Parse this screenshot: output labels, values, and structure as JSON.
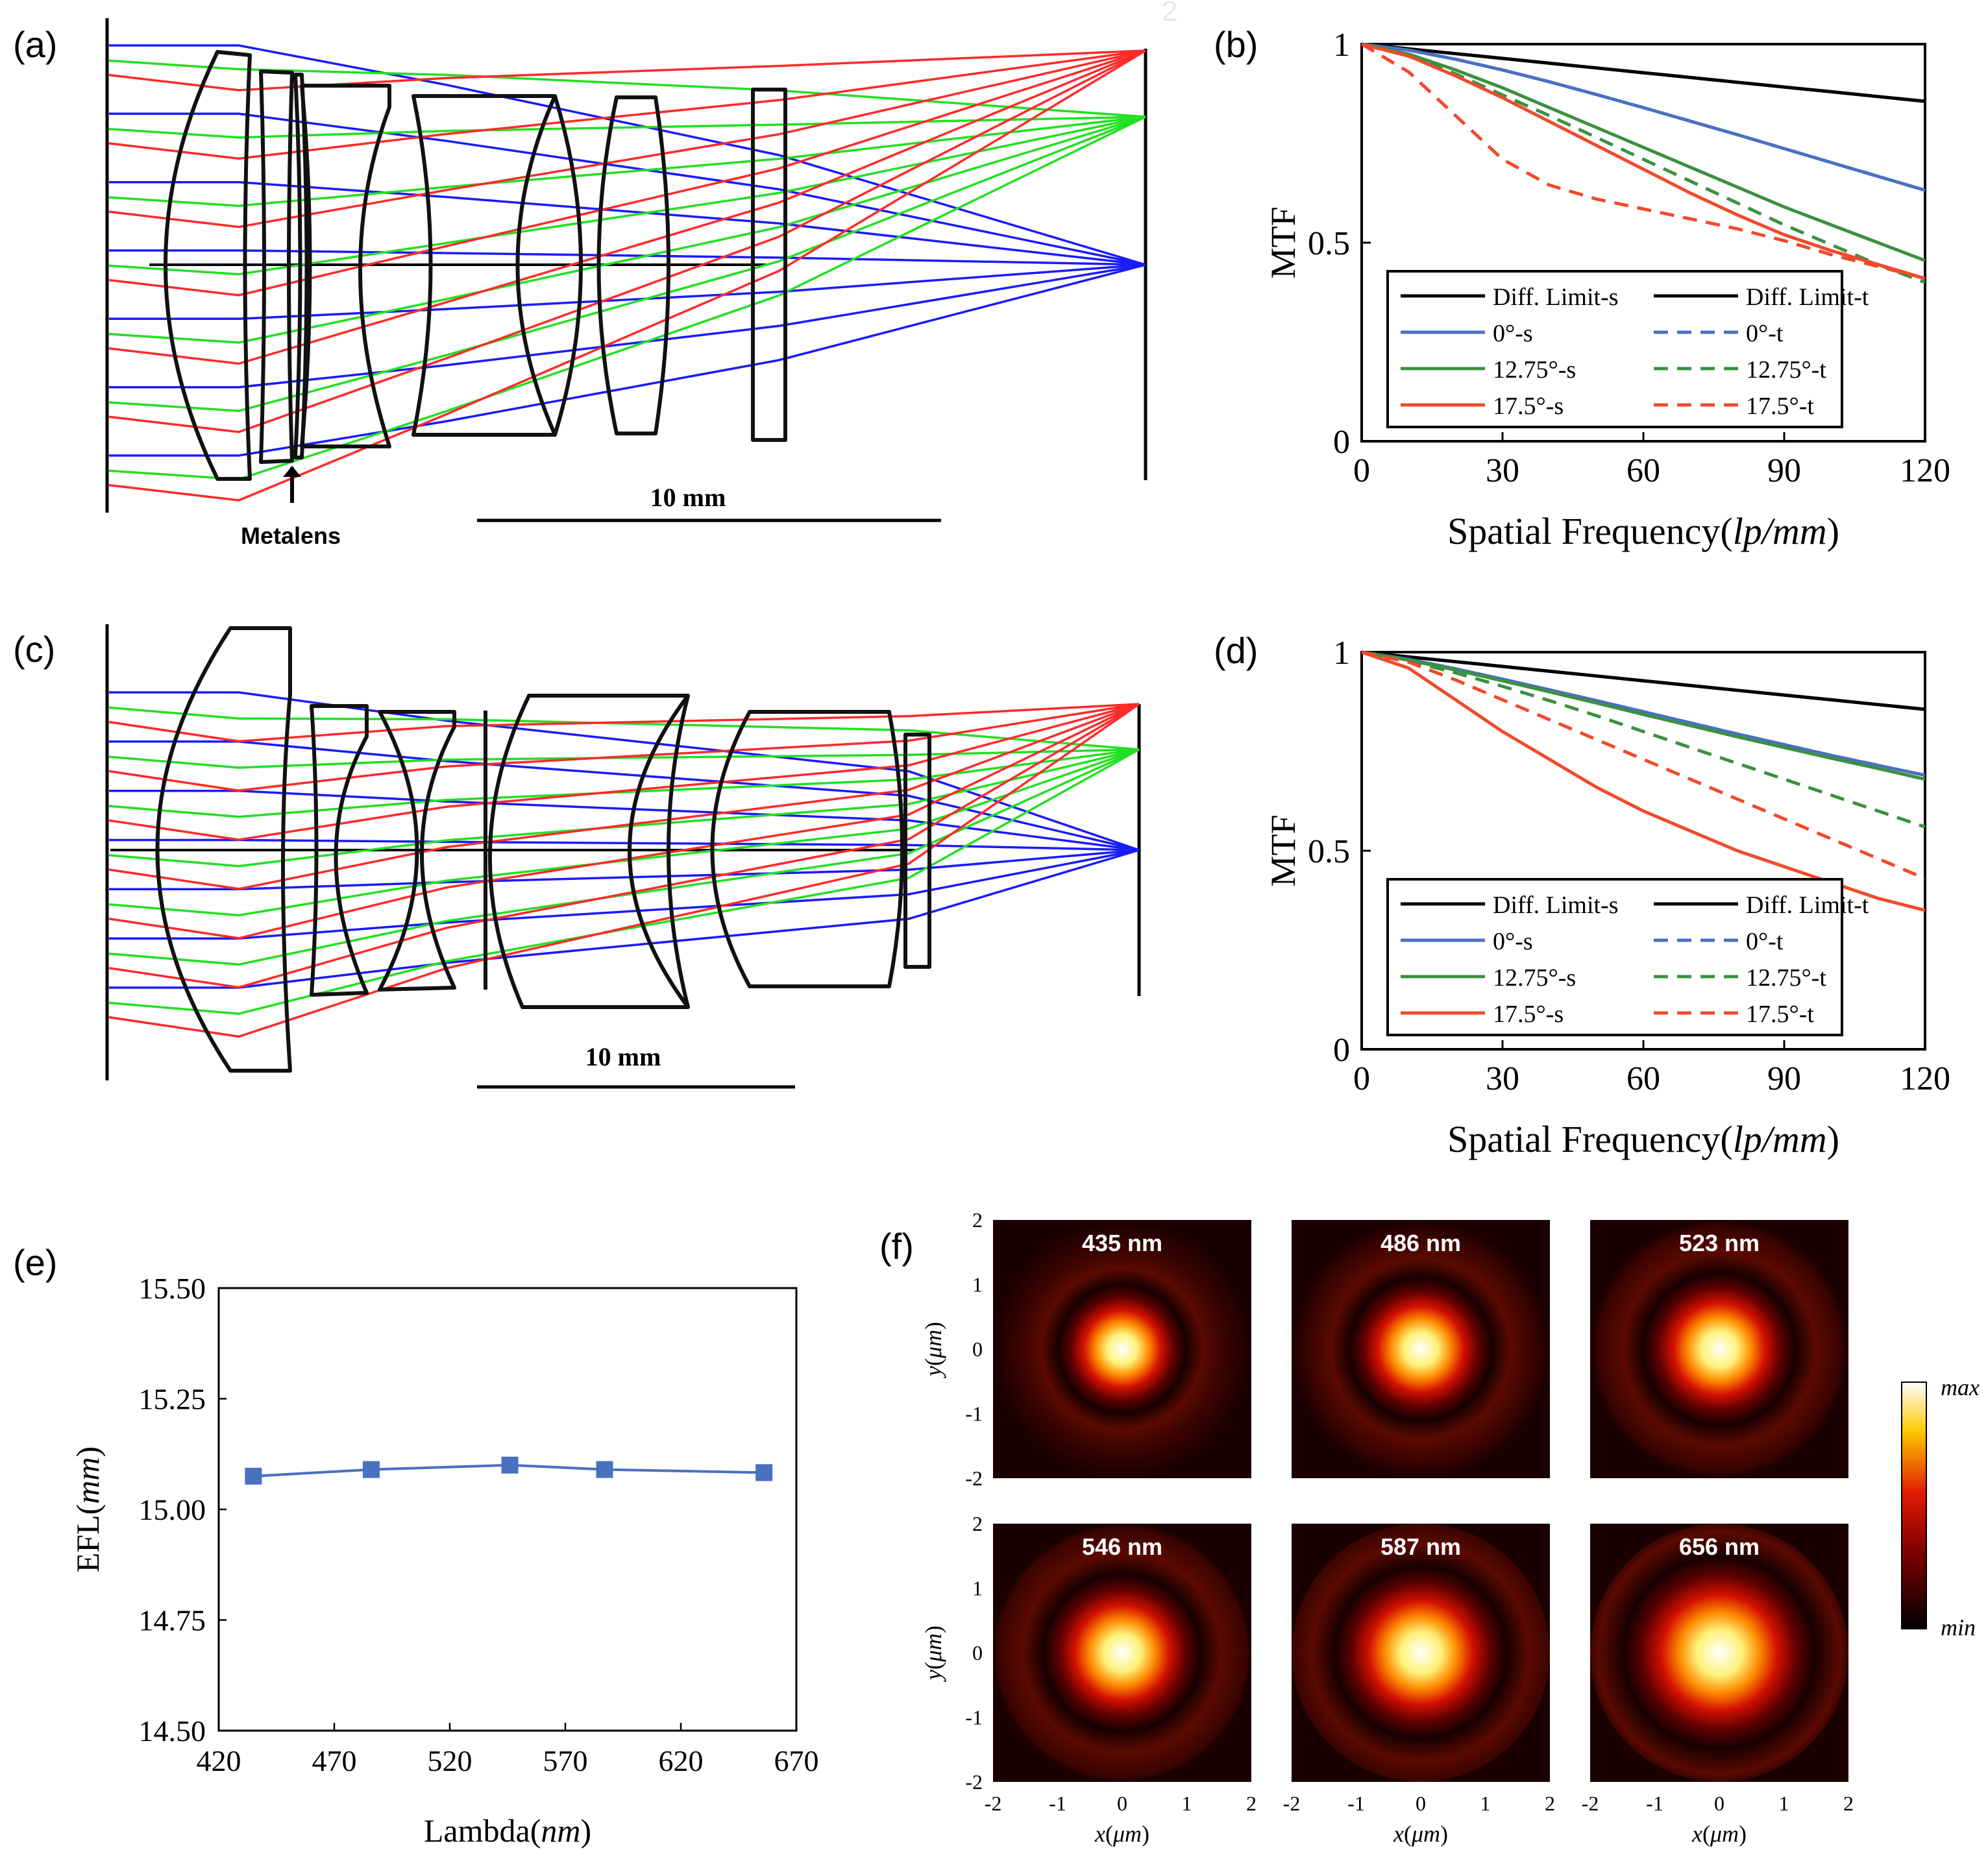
{
  "stray_mark": "2",
  "colors": {
    "red": "#ff2a2a",
    "green": "#22e022",
    "blue": "#1a1aff",
    "black": "#000000",
    "diff": "#000000",
    "zero": "#4a70c0",
    "mid": "#3c9040",
    "edge": "#f04a2c",
    "efl": "#4a70c0"
  },
  "panels": {
    "a": {
      "label": "(a)",
      "scale_label": "10 mm",
      "metalens_label": "Metalens"
    },
    "b": {
      "label": "(b)"
    },
    "c": {
      "label": "(c)",
      "scale_label": "10 mm"
    },
    "d": {
      "label": "(d)"
    },
    "e": {
      "label": "(e)"
    },
    "f": {
      "label": "(f)"
    }
  },
  "chart_data": [
    {
      "id": "b",
      "type": "line",
      "ylabel": "MTF",
      "xlabel_main": "Spatial Frequency(",
      "xlabel_italic": "lp/mm",
      "xlabel_end": ")",
      "xlim": [
        0,
        120
      ],
      "ylim": [
        0,
        1
      ],
      "xticks": [
        0,
        30,
        60,
        90,
        120
      ],
      "yticks": [
        0,
        0.5,
        1
      ],
      "ytick_labels": [
        "0",
        "0.5",
        "1"
      ],
      "x": [
        0,
        10,
        20,
        30,
        40,
        50,
        60,
        70,
        80,
        90,
        100,
        110,
        120
      ],
      "legend": [
        {
          "label": "Diff. Limit-s",
          "color": "diff",
          "dash": false
        },
        {
          "label": "Diff. Limit-t",
          "color": "diff",
          "dash": false
        },
        {
          "label": "0°-s",
          "color": "zero",
          "dash": false
        },
        {
          "label": "0°-t",
          "color": "zero",
          "dash": true
        },
        {
          "label": "12.75°-s",
          "color": "mid",
          "dash": false
        },
        {
          "label": "12.75°-t",
          "color": "mid",
          "dash": true
        },
        {
          "label": "17.5°-s",
          "color": "edge",
          "dash": false
        },
        {
          "label": "17.5°-t",
          "color": "edge",
          "dash": true
        }
      ],
      "series": [
        {
          "name": "Diff. Limit-s",
          "color": "diff",
          "dash": false,
          "values": [
            1.0,
            0.988,
            0.976,
            0.964,
            0.952,
            0.94,
            0.928,
            0.916,
            0.904,
            0.892,
            0.88,
            0.868,
            0.856
          ]
        },
        {
          "name": "Diff. Limit-t",
          "color": "diff",
          "dash": false,
          "values": [
            1.0,
            0.988,
            0.976,
            0.964,
            0.952,
            0.94,
            0.928,
            0.916,
            0.904,
            0.892,
            0.88,
            0.868,
            0.856
          ]
        },
        {
          "name": "0°-s",
          "color": "zero",
          "dash": false,
          "values": [
            1.0,
            0.985,
            0.962,
            0.935,
            0.905,
            0.873,
            0.84,
            0.806,
            0.772,
            0.737,
            0.702,
            0.667,
            0.632
          ]
        },
        {
          "name": "0°-t",
          "color": "zero",
          "dash": true,
          "values": [
            1.0,
            0.985,
            0.962,
            0.935,
            0.905,
            0.873,
            0.84,
            0.806,
            0.772,
            0.737,
            0.702,
            0.667,
            0.632
          ]
        },
        {
          "name": "12.75°-s",
          "color": "mid",
          "dash": false,
          "values": [
            1.0,
            0.975,
            0.935,
            0.89,
            0.84,
            0.79,
            0.74,
            0.69,
            0.64,
            0.59,
            0.545,
            0.5,
            0.455
          ]
        },
        {
          "name": "12.75°-t",
          "color": "mid",
          "dash": true,
          "values": [
            1.0,
            0.97,
            0.925,
            0.872,
            0.82,
            0.765,
            0.71,
            0.655,
            0.6,
            0.545,
            0.495,
            0.445,
            0.4
          ]
        },
        {
          "name": "17.5°-s",
          "color": "edge",
          "dash": false,
          "values": [
            1.0,
            0.97,
            0.92,
            0.865,
            0.805,
            0.745,
            0.685,
            0.625,
            0.57,
            0.52,
            0.48,
            0.445,
            0.41
          ]
        },
        {
          "name": "17.5°-t",
          "color": "edge",
          "dash": true,
          "values": [
            1.0,
            0.93,
            0.82,
            0.71,
            0.645,
            0.61,
            0.585,
            0.56,
            0.535,
            0.505,
            0.47,
            0.44,
            0.41
          ]
        }
      ]
    },
    {
      "id": "d",
      "type": "line",
      "ylabel": "MTF",
      "xlabel_main": "Spatial Frequency(",
      "xlabel_italic": "lp/mm",
      "xlabel_end": ")",
      "xlim": [
        0,
        120
      ],
      "ylim": [
        0,
        1
      ],
      "xticks": [
        0,
        30,
        60,
        90,
        120
      ],
      "yticks": [
        0,
        0.5,
        1
      ],
      "ytick_labels": [
        "0",
        "0.5",
        "1"
      ],
      "x": [
        0,
        10,
        20,
        30,
        40,
        50,
        60,
        70,
        80,
        90,
        100,
        110,
        120
      ],
      "legend": [
        {
          "label": "Diff. Limit-s",
          "color": "diff",
          "dash": false
        },
        {
          "label": "Diff. Limit-t",
          "color": "diff",
          "dash": false
        },
        {
          "label": "0°-s",
          "color": "zero",
          "dash": false
        },
        {
          "label": "0°-t",
          "color": "zero",
          "dash": true
        },
        {
          "label": "12.75°-s",
          "color": "mid",
          "dash": false
        },
        {
          "label": "12.75°-t",
          "color": "mid",
          "dash": true
        },
        {
          "label": "17.5°-s",
          "color": "edge",
          "dash": false
        },
        {
          "label": "17.5°-t",
          "color": "edge",
          "dash": true
        }
      ],
      "series": [
        {
          "name": "Diff. Limit-s",
          "color": "diff",
          "dash": false,
          "values": [
            1.0,
            0.988,
            0.976,
            0.964,
            0.952,
            0.94,
            0.928,
            0.916,
            0.904,
            0.892,
            0.88,
            0.868,
            0.856
          ]
        },
        {
          "name": "Diff. Limit-t",
          "color": "diff",
          "dash": false,
          "values": [
            1.0,
            0.988,
            0.976,
            0.964,
            0.952,
            0.94,
            0.928,
            0.916,
            0.904,
            0.892,
            0.88,
            0.868,
            0.856
          ]
        },
        {
          "name": "0°-s",
          "color": "zero",
          "dash": false,
          "values": [
            1.0,
            0.982,
            0.958,
            0.932,
            0.905,
            0.878,
            0.85,
            0.822,
            0.794,
            0.767,
            0.74,
            0.715,
            0.69
          ]
        },
        {
          "name": "0°-t",
          "color": "zero",
          "dash": true,
          "values": [
            1.0,
            0.982,
            0.958,
            0.932,
            0.905,
            0.878,
            0.85,
            0.822,
            0.794,
            0.767,
            0.74,
            0.715,
            0.69
          ]
        },
        {
          "name": "12.75°-s",
          "color": "mid",
          "dash": false,
          "values": [
            1.0,
            0.98,
            0.955,
            0.928,
            0.9,
            0.872,
            0.843,
            0.815,
            0.787,
            0.76,
            0.733,
            0.707,
            0.68
          ]
        },
        {
          "name": "12.75°-t",
          "color": "mid",
          "dash": true,
          "values": [
            1.0,
            0.978,
            0.948,
            0.914,
            0.878,
            0.84,
            0.8,
            0.76,
            0.72,
            0.68,
            0.64,
            0.6,
            0.56
          ]
        },
        {
          "name": "17.5°-s",
          "color": "edge",
          "dash": false,
          "values": [
            1.0,
            0.96,
            0.88,
            0.8,
            0.73,
            0.66,
            0.6,
            0.55,
            0.5,
            0.46,
            0.42,
            0.38,
            0.35
          ]
        },
        {
          "name": "17.5°-t",
          "color": "edge",
          "dash": true,
          "values": [
            1.0,
            0.975,
            0.93,
            0.88,
            0.83,
            0.78,
            0.73,
            0.68,
            0.63,
            0.58,
            0.53,
            0.48,
            0.43
          ]
        }
      ]
    },
    {
      "id": "e",
      "type": "line",
      "ylabel_main": "EFL(",
      "ylabel_italic": "mm",
      "ylabel_end": ")",
      "xlabel_main": "Lambda(",
      "xlabel_italic": "nm",
      "xlabel_end": ")",
      "xlim": [
        420,
        670
      ],
      "ylim": [
        14.5,
        15.5
      ],
      "xticks": [
        420,
        470,
        520,
        570,
        620,
        670
      ],
      "yticks": [
        14.5,
        14.75,
        15.0,
        15.25,
        15.5
      ],
      "ytick_labels": [
        "14.50",
        "14.75",
        "15.00",
        "15.25",
        "15.50"
      ],
      "x": [
        435,
        486,
        546,
        587,
        656
      ],
      "series": [
        {
          "name": "EFL",
          "color": "efl",
          "values": [
            15.075,
            15.09,
            15.1,
            15.09,
            15.083
          ]
        }
      ]
    },
    {
      "id": "f",
      "type": "heatmap",
      "xlabel_var": "x",
      "xlabel_unit": "μm",
      "ylabel_var": "y",
      "ylabel_unit": "μm",
      "ticks": [
        -2,
        -1,
        0,
        1,
        2
      ],
      "tick_labels": [
        "-2",
        "-1",
        "0",
        "1",
        "2"
      ],
      "colorbar_max": "max",
      "colorbar_min": "min",
      "maps": [
        {
          "wavelength": "435 nm",
          "spot_sigma": 0.26
        },
        {
          "wavelength": "486 nm",
          "spot_sigma": 0.29
        },
        {
          "wavelength": "523 nm",
          "spot_sigma": 0.31
        },
        {
          "wavelength": "546 nm",
          "spot_sigma": 0.32
        },
        {
          "wavelength": "587 nm",
          "spot_sigma": 0.35
        },
        {
          "wavelength": "656 nm",
          "spot_sigma": 0.39
        }
      ]
    }
  ]
}
